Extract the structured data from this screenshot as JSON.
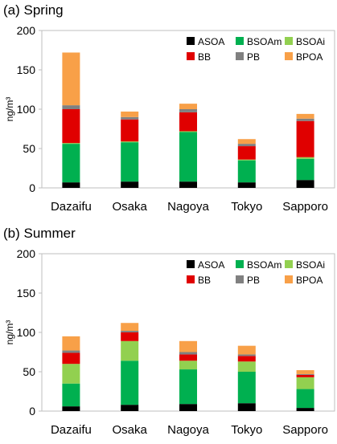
{
  "chart_data": [
    {
      "type": "bar",
      "stacked": true,
      "title": "(a) Spring",
      "ylabel": "ng/m³",
      "ylim": [
        0,
        200
      ],
      "yticks": [
        "0",
        "50",
        "100",
        "150",
        "200"
      ],
      "categories": [
        "Dazaifu",
        "Osaka",
        "Nagoya",
        "Tokyo",
        "Sapporo"
      ],
      "legend_position": "top-right",
      "series": [
        {
          "name": "ASOA",
          "color": "#000000",
          "values": [
            7,
            8,
            8,
            7,
            10
          ]
        },
        {
          "name": "BSOAm",
          "color": "#00B050",
          "values": [
            49,
            50,
            63,
            28,
            27
          ]
        },
        {
          "name": "BSOAi",
          "color": "#92D050",
          "values": [
            1,
            1,
            1,
            1,
            2
          ]
        },
        {
          "name": "BB",
          "color": "#E00000",
          "values": [
            43,
            28,
            24,
            17,
            46
          ]
        },
        {
          "name": "PB",
          "color": "#808080",
          "values": [
            5,
            3,
            4,
            3,
            3
          ]
        },
        {
          "name": "BPOA",
          "color": "#F8A048",
          "values": [
            67,
            7,
            7,
            6,
            6
          ]
        }
      ]
    },
    {
      "type": "bar",
      "stacked": true,
      "title": "(b) Summer",
      "ylabel": "ng/m³",
      "ylim": [
        0,
        200
      ],
      "yticks": [
        "0",
        "50",
        "100",
        "150",
        "200"
      ],
      "categories": [
        "Dazaifu",
        "Osaka",
        "Nagoya",
        "Tokyo",
        "Sapporo"
      ],
      "legend_position": "top-right",
      "series": [
        {
          "name": "ASOA",
          "color": "#000000",
          "values": [
            6,
            8,
            9,
            10,
            4
          ]
        },
        {
          "name": "BSOAm",
          "color": "#00B050",
          "values": [
            29,
            56,
            44,
            40,
            24
          ]
        },
        {
          "name": "BSOAi",
          "color": "#92D050",
          "values": [
            25,
            25,
            11,
            13,
            15
          ]
        },
        {
          "name": "BB",
          "color": "#E00000",
          "values": [
            14,
            11,
            8,
            7,
            3
          ]
        },
        {
          "name": "PB",
          "color": "#808080",
          "values": [
            3,
            2,
            3,
            2,
            1
          ]
        },
        {
          "name": "BPOA",
          "color": "#F8A048",
          "values": [
            18,
            10,
            14,
            11,
            5
          ]
        }
      ]
    }
  ]
}
